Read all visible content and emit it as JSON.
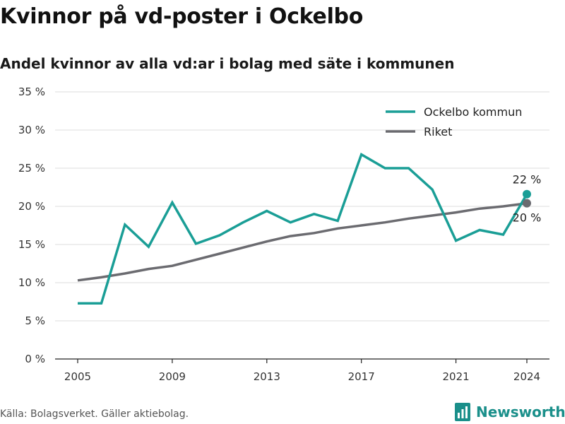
{
  "header": {
    "title": "Kvinnor på vd-poster i Ockelbo",
    "subtitle": "Andel kvinnor av alla vd:ar i bolag med säte i kommunen"
  },
  "footer": {
    "source": "Källa: Bolagsverket. Gäller aktiebolag.",
    "brand": "Newsworthy"
  },
  "colors": {
    "ockelbo": "#1a9e96",
    "riket": "#6b6b70",
    "grid": "#dddddd",
    "brand": "#1a8f8a"
  },
  "icons": {
    "logo": "bar-chart-icon"
  },
  "chart_data": {
    "type": "line",
    "x": [
      2005,
      2006,
      2007,
      2008,
      2009,
      2010,
      2011,
      2012,
      2013,
      2014,
      2015,
      2016,
      2017,
      2018,
      2019,
      2020,
      2021,
      2022,
      2023,
      2024
    ],
    "series": [
      {
        "name": "Ockelbo kommun",
        "values": [
          7.3,
          7.3,
          17.6,
          14.7,
          20.5,
          15.1,
          16.2,
          17.9,
          19.4,
          17.9,
          19.0,
          18.1,
          26.8,
          25.0,
          25.0,
          22.2,
          15.5,
          16.9,
          16.3,
          21.6
        ],
        "end_label": "22 %"
      },
      {
        "name": "Riket",
        "values": [
          10.3,
          10.7,
          11.2,
          11.8,
          12.2,
          13.0,
          13.8,
          14.6,
          15.4,
          16.1,
          16.5,
          17.1,
          17.5,
          17.9,
          18.4,
          18.8,
          19.2,
          19.7,
          20.0,
          20.4
        ],
        "end_label": "20 %"
      }
    ],
    "xticks": [
      2005,
      2009,
      2013,
      2017,
      2021,
      2024
    ],
    "yticks": [
      0,
      5,
      10,
      15,
      20,
      25,
      30,
      35
    ],
    "ytick_labels": [
      "0 %",
      "5 %",
      "10 %",
      "15 %",
      "20 %",
      "25 %",
      "30 %",
      "35 %"
    ],
    "ylim": [
      0,
      35
    ],
    "xlim": [
      2005,
      2024
    ],
    "grid": true,
    "legend_position": "top-right"
  }
}
